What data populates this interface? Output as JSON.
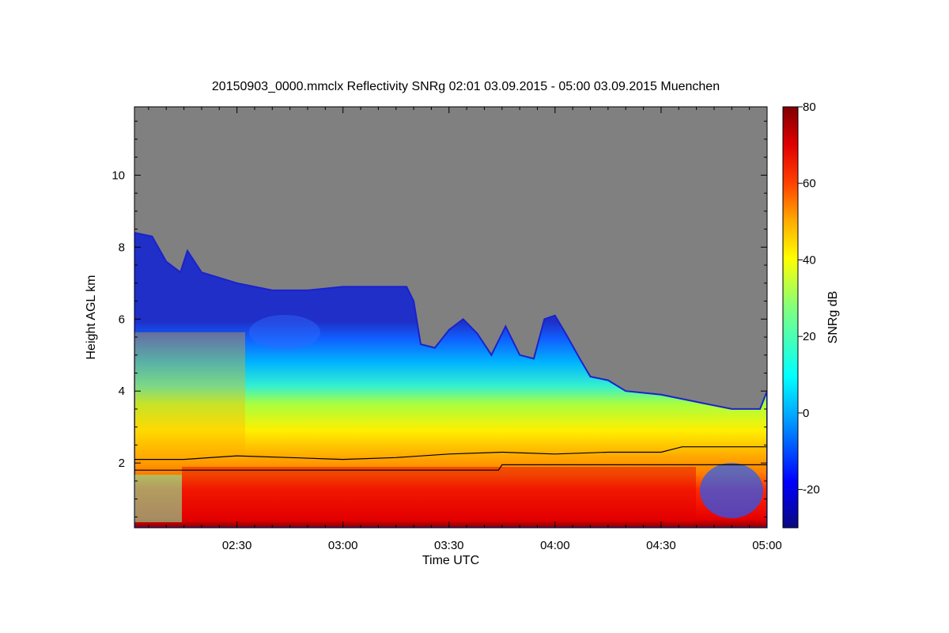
{
  "chart_data": {
    "type": "heatmap",
    "title": "20150903_0000.mmclx Reflectivity SNRg   02:01 03.09.2015 - 05:00 03.09.2015 Muenchen",
    "xlabel": "Time UTC",
    "ylabel": "Height AGL km",
    "x_unit": "minutes since 00:00 UTC",
    "xlim": [
      121,
      300
    ],
    "ylim": [
      0.2,
      11.9
    ],
    "x_ticks": [
      {
        "value": 150,
        "label": "02:30"
      },
      {
        "value": 180,
        "label": "03:00"
      },
      {
        "value": 210,
        "label": "03:30"
      },
      {
        "value": 240,
        "label": "04:00"
      },
      {
        "value": 270,
        "label": "04:30"
      },
      {
        "value": 300,
        "label": "05:00"
      }
    ],
    "y_ticks": [
      {
        "value": 2,
        "label": "2"
      },
      {
        "value": 4,
        "label": "4"
      },
      {
        "value": 6,
        "label": "6"
      },
      {
        "value": 8,
        "label": "8"
      },
      {
        "value": 10,
        "label": "10"
      }
    ],
    "colorbar": {
      "label": "SNRg dB",
      "range": [
        -30,
        80
      ],
      "ticks": [
        {
          "value": -20,
          "label": "-20"
        },
        {
          "value": 0,
          "label": "0"
        },
        {
          "value": 20,
          "label": "20"
        },
        {
          "value": 40,
          "label": "40"
        },
        {
          "value": 60,
          "label": "60"
        },
        {
          "value": 80,
          "label": "80"
        }
      ]
    },
    "echo_top_km": [
      {
        "t": 121,
        "h": 8.4
      },
      {
        "t": 126,
        "h": 8.3
      },
      {
        "t": 130,
        "h": 7.6
      },
      {
        "t": 134,
        "h": 7.3
      },
      {
        "t": 136,
        "h": 7.9
      },
      {
        "t": 140,
        "h": 7.3
      },
      {
        "t": 150,
        "h": 7.0
      },
      {
        "t": 160,
        "h": 6.8
      },
      {
        "t": 170,
        "h": 6.8
      },
      {
        "t": 180,
        "h": 6.9
      },
      {
        "t": 190,
        "h": 6.9
      },
      {
        "t": 198,
        "h": 6.9
      },
      {
        "t": 200,
        "h": 6.5
      },
      {
        "t": 201,
        "h": 5.9
      },
      {
        "t": 202,
        "h": 5.3
      },
      {
        "t": 206,
        "h": 5.2
      },
      {
        "t": 210,
        "h": 5.7
      },
      {
        "t": 214,
        "h": 6.0
      },
      {
        "t": 218,
        "h": 5.6
      },
      {
        "t": 222,
        "h": 5.0
      },
      {
        "t": 226,
        "h": 5.8
      },
      {
        "t": 230,
        "h": 5.0
      },
      {
        "t": 234,
        "h": 4.9
      },
      {
        "t": 237,
        "h": 6.0
      },
      {
        "t": 240,
        "h": 6.1
      },
      {
        "t": 243,
        "h": 5.6
      },
      {
        "t": 247,
        "h": 4.9
      },
      {
        "t": 250,
        "h": 4.4
      },
      {
        "t": 255,
        "h": 4.3
      },
      {
        "t": 260,
        "h": 4.0
      },
      {
        "t": 270,
        "h": 3.9
      },
      {
        "t": 280,
        "h": 3.7
      },
      {
        "t": 290,
        "h": 3.5
      },
      {
        "t": 298,
        "h": 3.5
      },
      {
        "t": 300,
        "h": 4.0
      }
    ],
    "lines": [
      {
        "name": "upper layer boundary",
        "points": [
          {
            "t": 121,
            "h": 2.1
          },
          {
            "t": 135,
            "h": 2.1
          },
          {
            "t": 150,
            "h": 2.2
          },
          {
            "t": 165,
            "h": 2.15
          },
          {
            "t": 180,
            "h": 2.1
          },
          {
            "t": 195,
            "h": 2.15
          },
          {
            "t": 210,
            "h": 2.25
          },
          {
            "t": 225,
            "h": 2.3
          },
          {
            "t": 240,
            "h": 2.25
          },
          {
            "t": 255,
            "h": 2.3
          },
          {
            "t": 270,
            "h": 2.3
          },
          {
            "t": 276,
            "h": 2.45
          },
          {
            "t": 300,
            "h": 2.45
          }
        ]
      },
      {
        "name": "lower layer boundary",
        "points": [
          {
            "t": 121,
            "h": 1.8
          },
          {
            "t": 224,
            "h": 1.8
          },
          {
            "t": 225,
            "h": 1.95
          },
          {
            "t": 300,
            "h": 1.95
          }
        ]
      }
    ]
  }
}
